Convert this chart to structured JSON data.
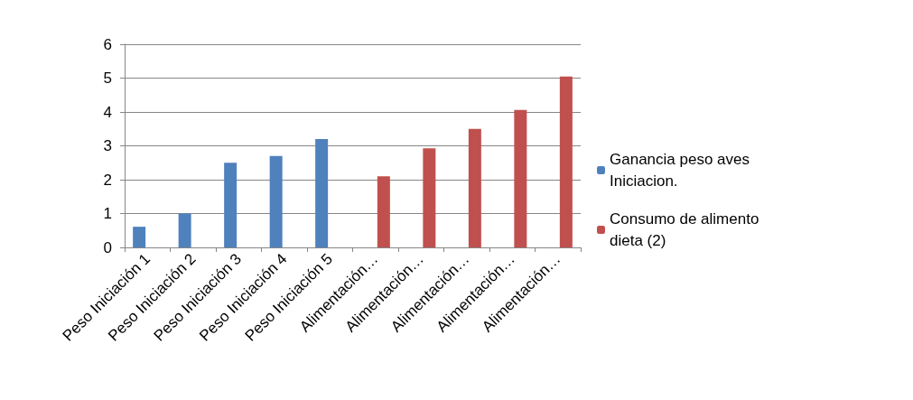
{
  "chart_data": {
    "type": "bar",
    "categories": [
      "Peso Iniciación 1",
      "Peso Iniciación 2",
      "Peso Iniciación 3",
      "Peso Iniciación 4",
      "Peso Iniciación 5",
      "Alimentación…",
      "Alimentación…",
      "Alimentación…",
      "Alimentación…",
      "Alimentación…"
    ],
    "series": [
      {
        "name": "Ganancia peso aves Iniciacion.",
        "color": "#4f81bd",
        "values": [
          0.61,
          1.0,
          2.5,
          2.7,
          3.2,
          null,
          null,
          null,
          null,
          null
        ]
      },
      {
        "name": "Consumo de alimento dieta (2)",
        "color": "#c0504d",
        "values": [
          null,
          null,
          null,
          null,
          null,
          2.1,
          2.93,
          3.5,
          4.06,
          5.05
        ]
      }
    ],
    "ylim": [
      0,
      6
    ],
    "yticks": [
      0,
      1,
      2,
      3,
      4,
      5,
      6
    ],
    "grid": "y",
    "legend": "right"
  }
}
